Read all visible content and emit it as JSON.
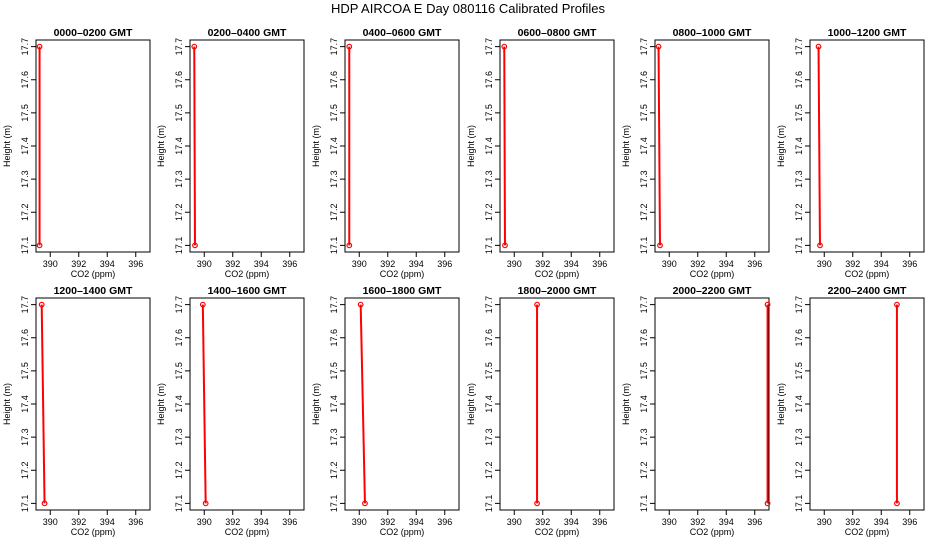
{
  "title": "HDP  AIRCOA E  Day 080116  Calibrated Profiles",
  "colors": {
    "profile": "#ff0000",
    "axis": "#000000"
  },
  "chart_data": [
    {
      "type": "line",
      "title": "0000–0200 GMT",
      "xlabel": "CO2 (ppm)",
      "ylabel": "Height (m)",
      "xlim": [
        389,
        397
      ],
      "ylim": [
        17.08,
        17.72
      ],
      "xticks": [
        "390",
        "392",
        "394",
        "396"
      ],
      "yticks": [
        "17.1",
        "17.2",
        "17.3",
        "17.4",
        "17.5",
        "17.6",
        "17.7"
      ],
      "x": [
        389.25,
        389.25
      ],
      "y": [
        17.1,
        17.7
      ]
    },
    {
      "type": "line",
      "title": "0200–0400 GMT",
      "xlabel": "CO2 (ppm)",
      "ylabel": "Height (m)",
      "xlim": [
        389,
        397
      ],
      "ylim": [
        17.08,
        17.72
      ],
      "xticks": [
        "390",
        "392",
        "394",
        "396"
      ],
      "yticks": [
        "17.1",
        "17.2",
        "17.3",
        "17.4",
        "17.5",
        "17.6",
        "17.7"
      ],
      "x": [
        389.35,
        389.3
      ],
      "y": [
        17.1,
        17.7
      ]
    },
    {
      "type": "line",
      "title": "0400–0600 GMT",
      "xlabel": "CO2 (ppm)",
      "ylabel": "Height (m)",
      "xlim": [
        389,
        397
      ],
      "ylim": [
        17.08,
        17.72
      ],
      "xticks": [
        "390",
        "392",
        "394",
        "396"
      ],
      "yticks": [
        "17.1",
        "17.2",
        "17.3",
        "17.4",
        "17.5",
        "17.6",
        "17.7"
      ],
      "x": [
        389.3,
        389.3
      ],
      "y": [
        17.1,
        17.7
      ]
    },
    {
      "type": "line",
      "title": "0600–0800 GMT",
      "xlabel": "CO2 (ppm)",
      "ylabel": "Height (m)",
      "xlim": [
        389,
        397
      ],
      "ylim": [
        17.08,
        17.72
      ],
      "xticks": [
        "390",
        "392",
        "394",
        "396"
      ],
      "yticks": [
        "17.1",
        "17.2",
        "17.3",
        "17.4",
        "17.5",
        "17.6",
        "17.7"
      ],
      "x": [
        389.35,
        389.3
      ],
      "y": [
        17.1,
        17.7
      ]
    },
    {
      "type": "line",
      "title": "0800–1000 GMT",
      "xlabel": "CO2 (ppm)",
      "ylabel": "Height (m)",
      "xlim": [
        389,
        397
      ],
      "ylim": [
        17.08,
        17.72
      ],
      "xticks": [
        "390",
        "392",
        "394",
        "396"
      ],
      "yticks": [
        "17.1",
        "17.2",
        "17.3",
        "17.4",
        "17.5",
        "17.6",
        "17.7"
      ],
      "x": [
        389.35,
        389.25
      ],
      "y": [
        17.1,
        17.7
      ]
    },
    {
      "type": "line",
      "title": "1000–1200 GMT",
      "xlabel": "CO2 (ppm)",
      "ylabel": "Height (m)",
      "xlim": [
        389,
        397
      ],
      "ylim": [
        17.08,
        17.72
      ],
      "xticks": [
        "390",
        "392",
        "394",
        "396"
      ],
      "yticks": [
        "17.1",
        "17.2",
        "17.3",
        "17.4",
        "17.5",
        "17.6",
        "17.7"
      ],
      "x": [
        389.7,
        389.6
      ],
      "y": [
        17.1,
        17.7
      ]
    },
    {
      "type": "line",
      "title": "1200–1400 GMT",
      "xlabel": "CO2 (ppm)",
      "ylabel": "Height (m)",
      "xlim": [
        389,
        397
      ],
      "ylim": [
        17.08,
        17.72
      ],
      "xticks": [
        "390",
        "392",
        "394",
        "396"
      ],
      "yticks": [
        "17.1",
        "17.2",
        "17.3",
        "17.4",
        "17.5",
        "17.6",
        "17.7"
      ],
      "x": [
        389.6,
        389.4
      ],
      "y": [
        17.1,
        17.7
      ]
    },
    {
      "type": "line",
      "title": "1400–1600 GMT",
      "xlabel": "CO2 (ppm)",
      "ylabel": "Height (m)",
      "xlim": [
        389,
        397
      ],
      "ylim": [
        17.08,
        17.72
      ],
      "xticks": [
        "390",
        "392",
        "394",
        "396"
      ],
      "yticks": [
        "17.1",
        "17.2",
        "17.3",
        "17.4",
        "17.5",
        "17.6",
        "17.7"
      ],
      "x": [
        390.1,
        389.9
      ],
      "y": [
        17.1,
        17.7
      ]
    },
    {
      "type": "line",
      "title": "1600–1800 GMT",
      "xlabel": "CO2 (ppm)",
      "ylabel": "Height (m)",
      "xlim": [
        389,
        397
      ],
      "ylim": [
        17.08,
        17.72
      ],
      "xticks": [
        "390",
        "392",
        "394",
        "396"
      ],
      "yticks": [
        "17.1",
        "17.2",
        "17.3",
        "17.4",
        "17.5",
        "17.6",
        "17.7"
      ],
      "x": [
        390.4,
        390.1
      ],
      "y": [
        17.1,
        17.7
      ]
    },
    {
      "type": "line",
      "title": "1800–2000 GMT",
      "xlabel": "CO2 (ppm)",
      "ylabel": "Height (m)",
      "xlim": [
        389,
        397
      ],
      "ylim": [
        17.08,
        17.72
      ],
      "xticks": [
        "390",
        "392",
        "394",
        "396"
      ],
      "yticks": [
        "17.1",
        "17.2",
        "17.3",
        "17.4",
        "17.5",
        "17.6",
        "17.7"
      ],
      "x": [
        391.6,
        391.6
      ],
      "y": [
        17.1,
        17.7
      ]
    },
    {
      "type": "line",
      "title": "2000–2200 GMT",
      "xlabel": "CO2 (ppm)",
      "ylabel": "Height (m)",
      "xlim": [
        389,
        397
      ],
      "ylim": [
        17.08,
        17.72
      ],
      "xticks": [
        "390",
        "392",
        "394",
        "396"
      ],
      "yticks": [
        "17.1",
        "17.2",
        "17.3",
        "17.4",
        "17.5",
        "17.6",
        "17.7"
      ],
      "x": [
        396.9,
        396.9
      ],
      "y": [
        17.1,
        17.7
      ]
    },
    {
      "type": "line",
      "title": "2200–2400 GMT",
      "xlabel": "CO2 (ppm)",
      "ylabel": "Height (m)",
      "xlim": [
        389,
        397
      ],
      "ylim": [
        17.08,
        17.72
      ],
      "xticks": [
        "390",
        "392",
        "394",
        "396"
      ],
      "yticks": [
        "17.1",
        "17.2",
        "17.3",
        "17.4",
        "17.5",
        "17.6",
        "17.7"
      ],
      "x": [
        395.1,
        395.1
      ],
      "y": [
        17.1,
        17.7
      ]
    }
  ]
}
